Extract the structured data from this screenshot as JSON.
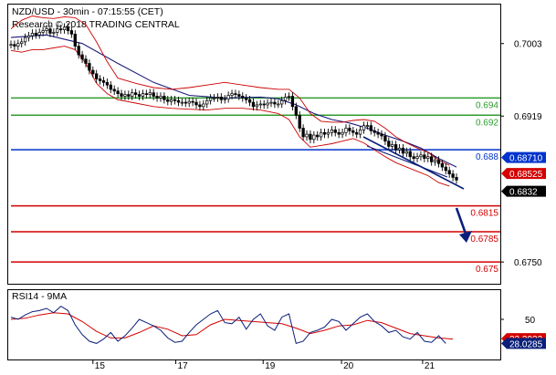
{
  "header": {
    "title": "NZD/USD - 30min - 07:15:55 (CET)",
    "copyright": "Research © 2018 TRADING CENTRAL"
  },
  "rsi_panel": {
    "label": "RSI14 - 9MA"
  },
  "colors": {
    "candle": "#000000",
    "ma_blue": "#1a1a7a",
    "bollinger": "#cc0000",
    "support_red": "#d40000",
    "resistance_green": "#2e9e2e",
    "pivot_blue": "#0033cc",
    "trend_navy": "#0a1f7a",
    "rsi_line": "#0a1f7a",
    "rsi_ma": "#d40000"
  },
  "chart_data": [
    {
      "type": "candlestick",
      "title": "NZD/USD - 30min",
      "xlabel": "",
      "ylabel": "",
      "ylim": [
        0.6728,
        0.7045
      ],
      "y_ticks": [
        0.7003,
        0.6919,
        0.675
      ],
      "x_tick_labels": [
        "15",
        "17",
        "19",
        "20",
        "21"
      ],
      "price_levels": [
        {
          "label": "0.694",
          "value": 0.694,
          "kind": "resistance"
        },
        {
          "label": "0.692",
          "value": 0.692,
          "kind": "resistance"
        },
        {
          "label": "0.688",
          "value": 0.688,
          "kind": "pivot"
        },
        {
          "label": "0.6815",
          "value": 0.6815,
          "kind": "support"
        },
        {
          "label": "0.6785",
          "value": 0.6785,
          "kind": "support"
        },
        {
          "label": "0.675",
          "value": 0.675,
          "kind": "support"
        }
      ],
      "price_tags": [
        {
          "label": "0.68710",
          "value": 0.6871,
          "color": "#0033cc"
        },
        {
          "label": "0.68525",
          "value": 0.68525,
          "color": "#d40000"
        },
        {
          "label": "0.6832",
          "value": 0.6832,
          "color": "#000000"
        }
      ],
      "series": [
        {
          "name": "price",
          "x": [
            0,
            4,
            8,
            12,
            16,
            20,
            24,
            28,
            32,
            36,
            40,
            44,
            48,
            52,
            56,
            60,
            64,
            68,
            72,
            76,
            80,
            84,
            88,
            92,
            96,
            100,
            104,
            108,
            112,
            116,
            120,
            124,
            128,
            132,
            136,
            140,
            144,
            148,
            152,
            156,
            160,
            164,
            168,
            172,
            176,
            180,
            184,
            188,
            192,
            196,
            200,
            204,
            208,
            212,
            216,
            220,
            224,
            228,
            232,
            236,
            240,
            244,
            248,
            252,
            256,
            260,
            264,
            268,
            272,
            276,
            280,
            284,
            288,
            292,
            296,
            300,
            304,
            308,
            312,
            316,
            320,
            324,
            328,
            332,
            336,
            340,
            344,
            348,
            352,
            356,
            360,
            364,
            368,
            372,
            376,
            380,
            384,
            388,
            392,
            396,
            400,
            404,
            408,
            412,
            416,
            420,
            424,
            428,
            432,
            436,
            440,
            444,
            448,
            452,
            456,
            460,
            464,
            468,
            472,
            476,
            480,
            484,
            488,
            492,
            496,
            500
          ],
          "values": [
            0.7002,
            0.7,
            0.7003,
            0.7005,
            0.701,
            0.7012,
            0.7015,
            0.7013,
            0.7016,
            0.7018,
            0.702,
            0.7015,
            0.7016,
            0.702,
            0.7019,
            0.7022,
            0.7018,
            0.7014,
            0.7,
            0.699,
            0.6985,
            0.698,
            0.6972,
            0.6968,
            0.6962,
            0.696,
            0.6958,
            0.6955,
            0.695,
            0.6948,
            0.6945,
            0.6942,
            0.6944,
            0.6942,
            0.6946,
            0.6944,
            0.6942,
            0.6945,
            0.6944,
            0.6946,
            0.6942,
            0.694,
            0.6942,
            0.6938,
            0.6936,
            0.6938,
            0.6937,
            0.6935,
            0.6935,
            0.6934,
            0.6936,
            0.6935,
            0.6932,
            0.693,
            0.6933,
            0.6937,
            0.694,
            0.694,
            0.6941,
            0.6938,
            0.6939,
            0.6943,
            0.6945,
            0.6944,
            0.6942,
            0.694,
            0.6938,
            0.6935,
            0.693,
            0.6932,
            0.6933,
            0.6932,
            0.6934,
            0.6935,
            0.6933,
            0.6933,
            0.6937,
            0.6941,
            0.6942,
            0.693,
            0.692,
            0.6905,
            0.6895,
            0.6898,
            0.6892,
            0.6897,
            0.6895,
            0.69,
            0.6898,
            0.69,
            0.6903,
            0.69,
            0.6898,
            0.69,
            0.6905,
            0.6902,
            0.69,
            0.6898,
            0.6903,
            0.6908,
            0.6908,
            0.6902,
            0.69,
            0.6898,
            0.6896,
            0.689,
            0.6884,
            0.6886,
            0.688,
            0.6882,
            0.6876,
            0.6878,
            0.6872,
            0.687,
            0.6872,
            0.6874,
            0.687,
            0.6872,
            0.6866,
            0.6868,
            0.6864,
            0.686,
            0.6856,
            0.6852,
            0.6848,
            0.6845
          ]
        },
        {
          "name": "moving_average",
          "x": [
            0,
            40,
            80,
            120,
            160,
            200,
            240,
            280,
            300,
            320,
            340,
            360,
            380,
            400,
            420,
            440,
            460,
            480,
            500
          ],
          "values": [
            0.701,
            0.7013,
            0.7003,
            0.698,
            0.6958,
            0.6943,
            0.694,
            0.6941,
            0.6939,
            0.6932,
            0.6922,
            0.6915,
            0.6911,
            0.6905,
            0.6897,
            0.689,
            0.6882,
            0.687,
            0.686
          ]
        },
        {
          "name": "bollinger_upper",
          "x": [
            0,
            12,
            24,
            36,
            48,
            60,
            72,
            84,
            96,
            108,
            120,
            140,
            160,
            180,
            200,
            220,
            240,
            260,
            280,
            300,
            312,
            324,
            336,
            348,
            360,
            372,
            384,
            396,
            408,
            420,
            432,
            444,
            456,
            468,
            480,
            492
          ],
          "values": [
            0.702,
            0.703,
            0.7035,
            0.7033,
            0.7032,
            0.7034,
            0.7033,
            0.7025,
            0.7005,
            0.6982,
            0.6963,
            0.6957,
            0.6952,
            0.695,
            0.6952,
            0.6955,
            0.6958,
            0.6955,
            0.6952,
            0.695,
            0.695,
            0.694,
            0.6922,
            0.6913,
            0.6912,
            0.6912,
            0.6914,
            0.6915,
            0.6913,
            0.6905,
            0.6895,
            0.6888,
            0.6882,
            0.6877,
            0.6868,
            0.6862
          ]
        },
        {
          "name": "bollinger_lower",
          "x": [
            0,
            12,
            24,
            36,
            48,
            60,
            72,
            84,
            96,
            108,
            120,
            140,
            160,
            180,
            200,
            220,
            240,
            260,
            280,
            300,
            312,
            324,
            336,
            348,
            360,
            372,
            384,
            396,
            408,
            420,
            432,
            444,
            456,
            468,
            480,
            492
          ],
          "values": [
            0.6995,
            0.6993,
            0.6996,
            0.6996,
            0.6998,
            0.7,
            0.6996,
            0.698,
            0.6957,
            0.6945,
            0.6938,
            0.6934,
            0.693,
            0.6928,
            0.6927,
            0.6926,
            0.6928,
            0.6928,
            0.6926,
            0.6922,
            0.6915,
            0.6895,
            0.6883,
            0.6885,
            0.6887,
            0.689,
            0.6893,
            0.6888,
            0.688,
            0.6872,
            0.6865,
            0.686,
            0.6855,
            0.685,
            0.6842,
            0.6838
          ]
        }
      ]
    },
    {
      "type": "line",
      "title": "RSI14 - 9MA",
      "ylim": [
        15,
        75
      ],
      "y_ticks": [
        50
      ],
      "rsi_tags": [
        {
          "label": "32.3932",
          "value": 32.39,
          "color": "#d40000"
        },
        {
          "label": "28.0285",
          "value": 28.03,
          "color": "#0a1f7a"
        }
      ],
      "series": [
        {
          "name": "RSI14",
          "x": [
            0,
            8,
            16,
            24,
            32,
            40,
            48,
            56,
            64,
            72,
            80,
            88,
            96,
            104,
            112,
            120,
            128,
            136,
            144,
            152,
            160,
            168,
            176,
            184,
            192,
            200,
            208,
            216,
            224,
            232,
            240,
            248,
            256,
            264,
            272,
            280,
            288,
            296,
            304,
            312,
            320,
            328,
            336,
            344,
            352,
            360,
            368,
            376,
            384,
            392,
            400,
            408,
            416,
            424,
            432,
            440,
            448,
            456,
            464,
            472,
            480,
            488
          ],
          "values": [
            52,
            50,
            54,
            57,
            58,
            60,
            56,
            62,
            58,
            45,
            36,
            30,
            28,
            32,
            38,
            30,
            35,
            42,
            50,
            47,
            44,
            40,
            33,
            29,
            30,
            38,
            45,
            50,
            55,
            58,
            47,
            46,
            52,
            41,
            50,
            55,
            44,
            40,
            52,
            55,
            28,
            30,
            38,
            40,
            43,
            50,
            48,
            40,
            46,
            52,
            55,
            48,
            44,
            38,
            40,
            34,
            32,
            38,
            30,
            29,
            35,
            28
          ]
        },
        {
          "name": "9MA",
          "x": [
            0,
            16,
            32,
            48,
            64,
            80,
            96,
            112,
            128,
            144,
            160,
            176,
            192,
            208,
            224,
            240,
            256,
            272,
            288,
            304,
            320,
            336,
            352,
            368,
            384,
            400,
            416,
            432,
            448,
            464,
            480,
            496
          ],
          "values": [
            50,
            51,
            54,
            56,
            55,
            48,
            39,
            33,
            33,
            38,
            44,
            41,
            35,
            36,
            45,
            50,
            49,
            48,
            47,
            46,
            42,
            37,
            40,
            44,
            45,
            49,
            47,
            42,
            37,
            35,
            33,
            32
          ]
        }
      ]
    }
  ]
}
